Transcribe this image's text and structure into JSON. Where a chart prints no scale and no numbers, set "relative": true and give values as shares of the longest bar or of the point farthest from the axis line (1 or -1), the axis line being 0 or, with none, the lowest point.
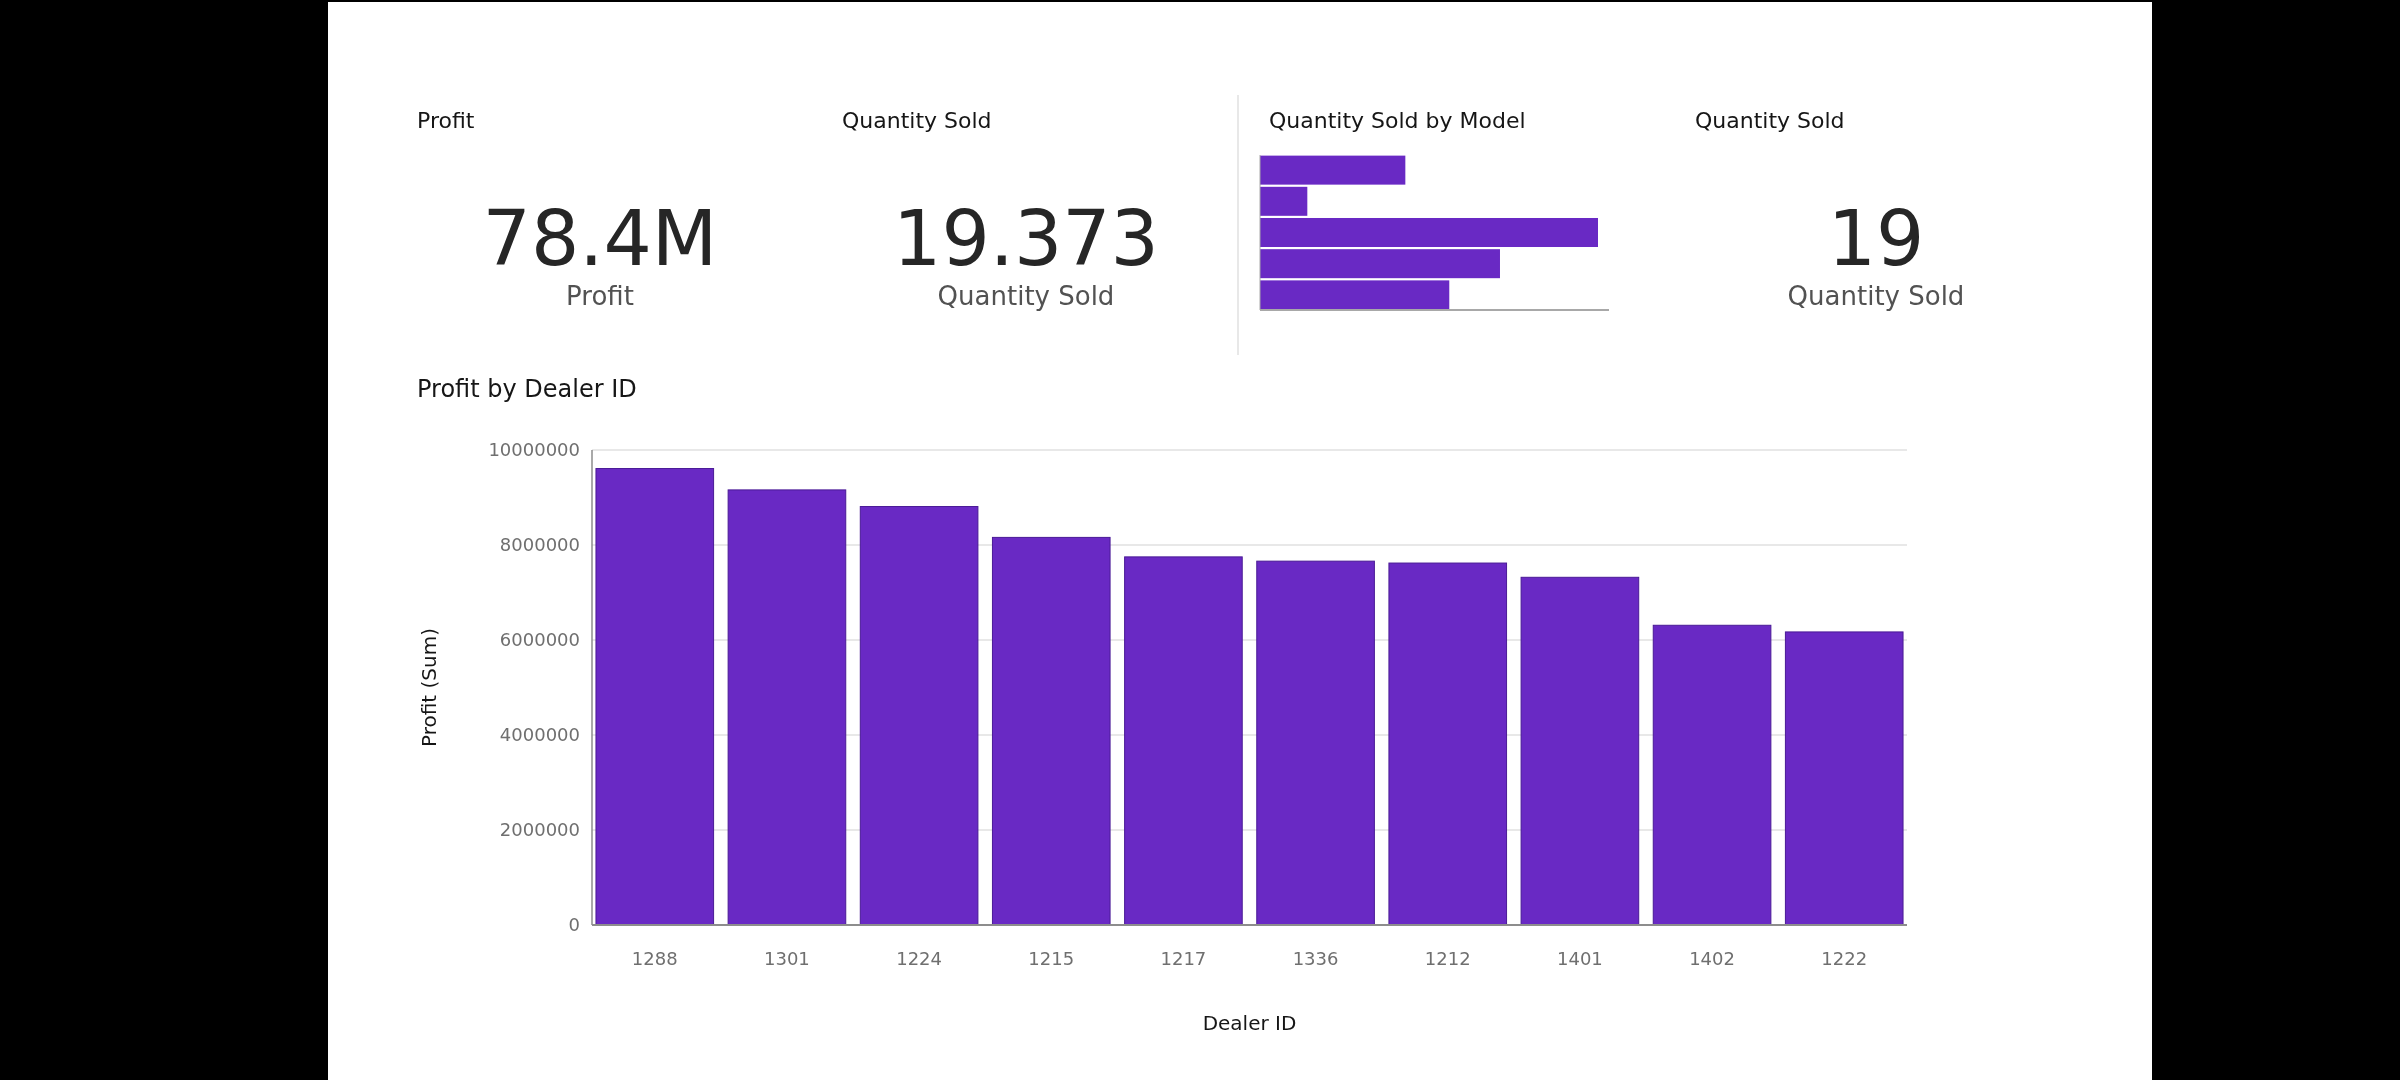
{
  "chart_data": [
    {
      "type": "other",
      "title": "Profit",
      "annotations": [
        "78.4M",
        "Profit"
      ]
    },
    {
      "type": "other",
      "title": "Quantity Sold",
      "annotations": [
        "19.373",
        "Quantity Sold"
      ]
    },
    {
      "type": "bar",
      "title": "Quantity Sold by Model",
      "orientation": "horizontal",
      "relative": true,
      "categories": [
        null,
        null,
        null,
        null,
        null
      ],
      "values": [
        0.43,
        0.14,
        1,
        0.71,
        0.56
      ],
      "color": "#6929c4"
    },
    {
      "type": "other",
      "title": "Quantity Sold",
      "annotations": [
        "19",
        "Quantity Sold"
      ]
    },
    {
      "type": "bar",
      "title": "Profit by Dealer ID",
      "xlabel": "Dealer ID",
      "ylabel": "Profit (Sum)",
      "categories": [
        "1288",
        "1301",
        "1224",
        "1215",
        "1217",
        "1336",
        "1212",
        "1401",
        "1402",
        "1222"
      ],
      "values": [
        9610000,
        9160000,
        8810000,
        8160000,
        7750000,
        7660000,
        7620000,
        7320000,
        6310000,
        6170000
      ],
      "color": "#6929c4",
      "ylim": [
        0,
        10000000
      ],
      "yticks": [
        0,
        2000000,
        4000000,
        6000000,
        8000000,
        10000000
      ],
      "grid": "y"
    }
  ]
}
